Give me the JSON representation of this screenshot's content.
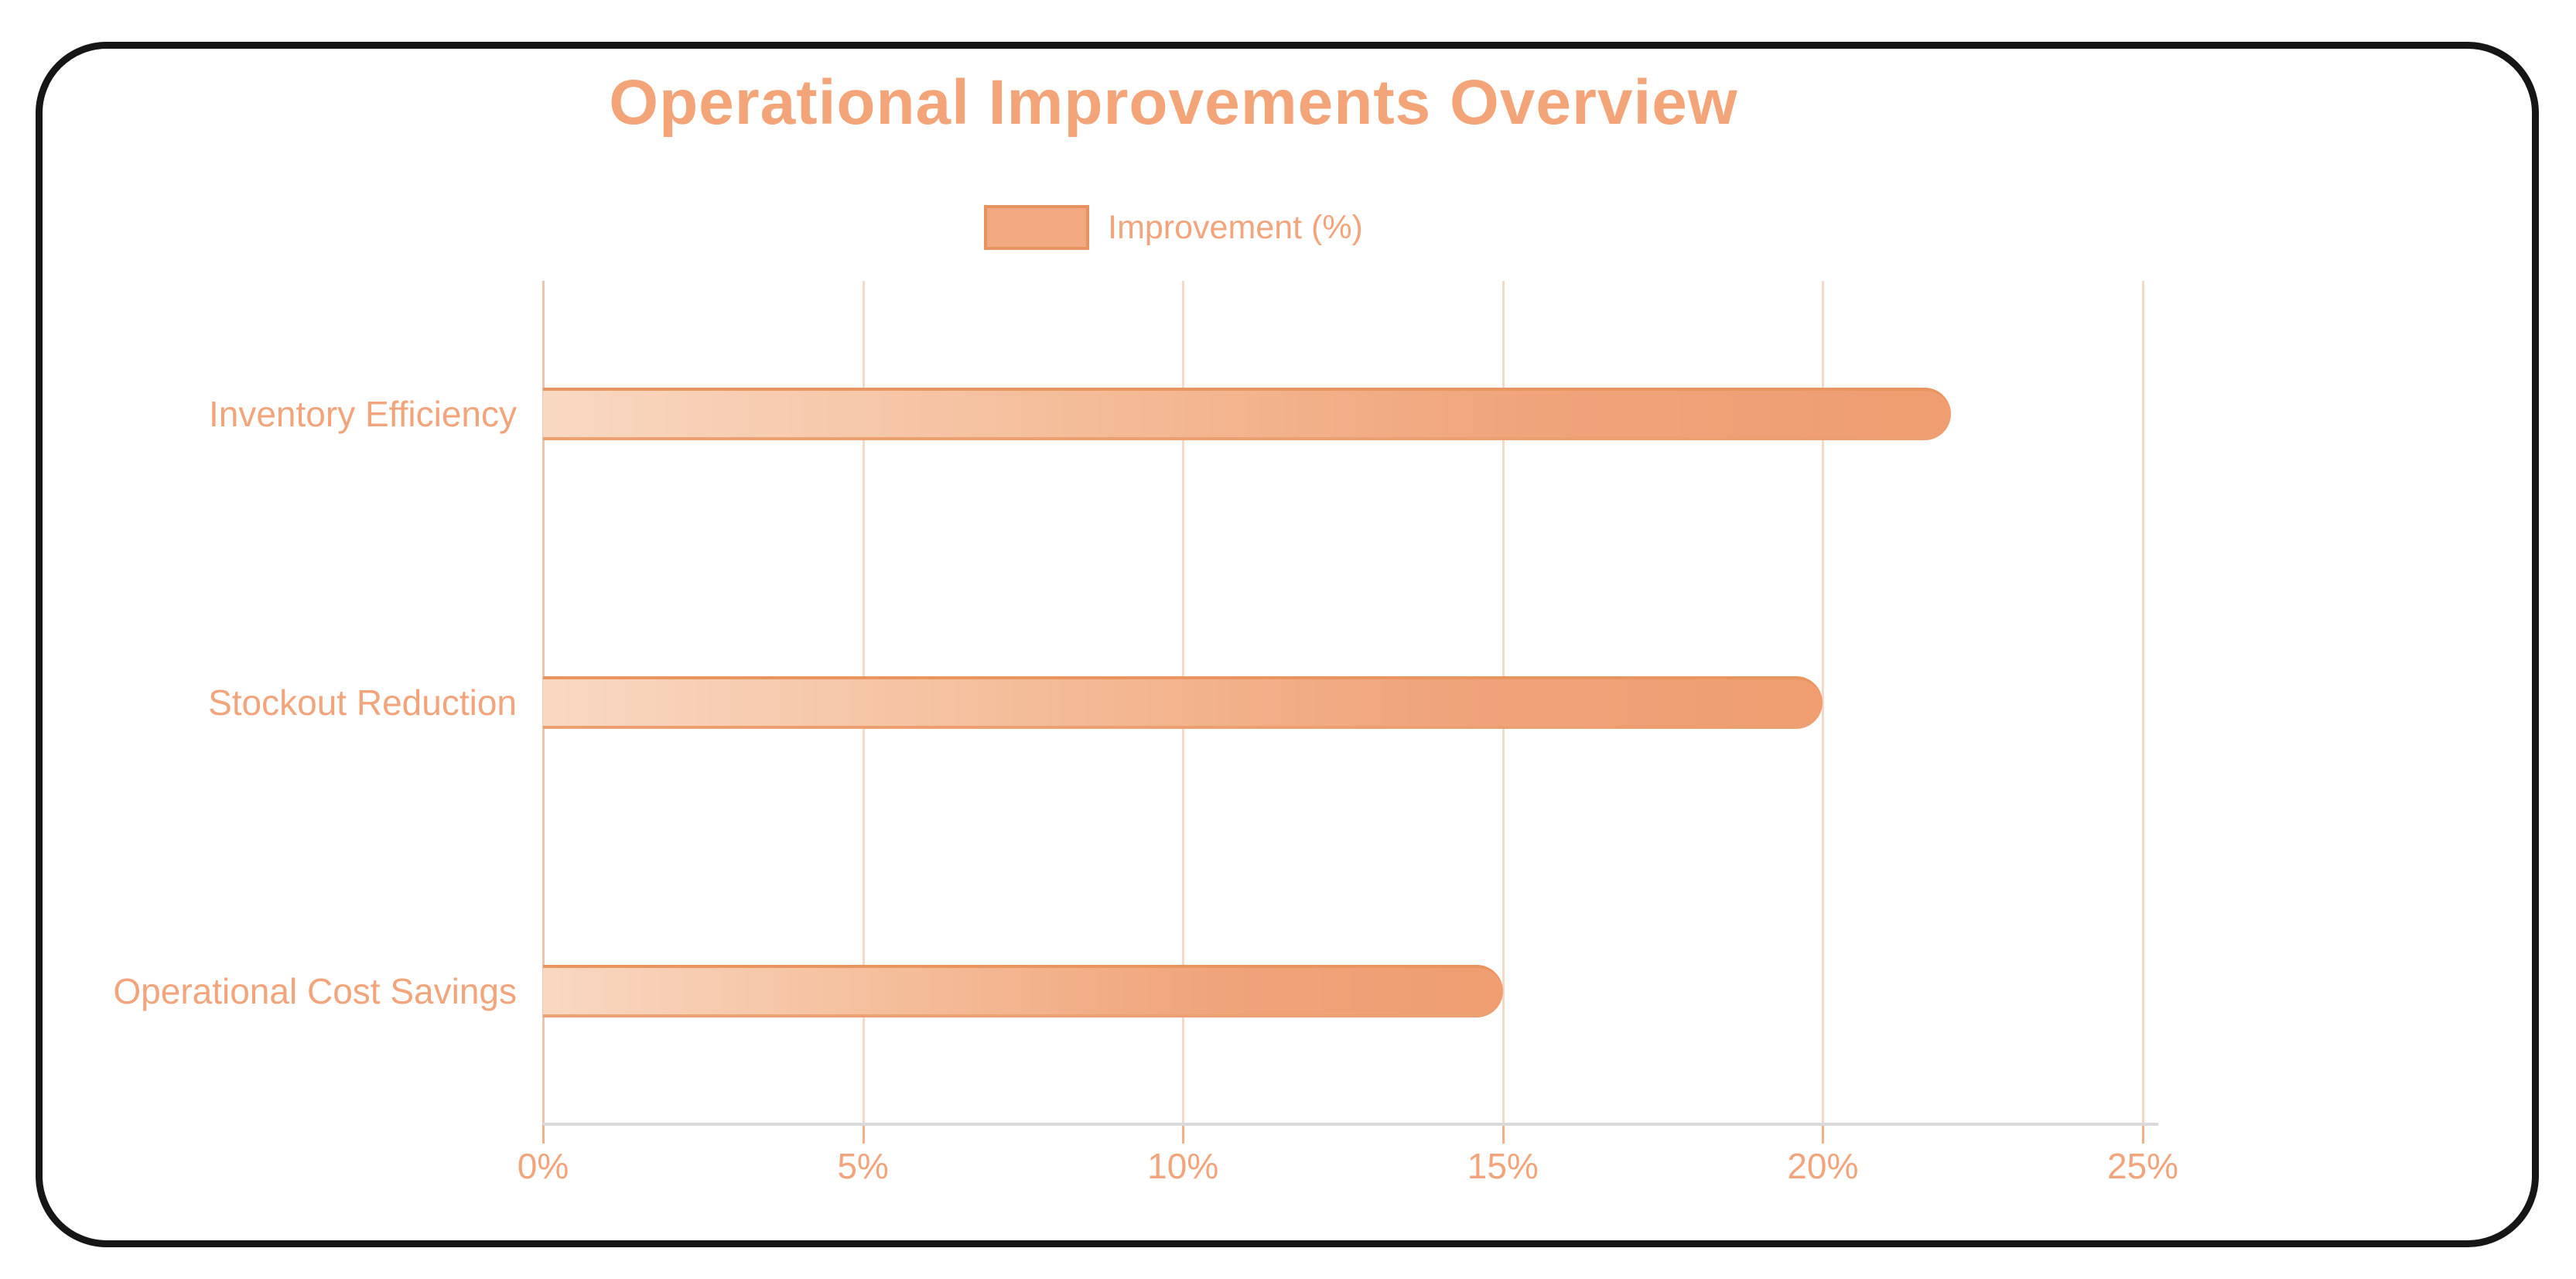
{
  "title": "Operational Improvements Overview",
  "legend": {
    "label": "Improvement (%)",
    "swatch_color": "#F2A981"
  },
  "chart_data": {
    "type": "bar",
    "orientation": "horizontal",
    "title": "Operational Improvements Overview",
    "series_name": "Improvement (%)",
    "categories": [
      "Inventory Efficiency",
      "Stockout Reduction",
      "Operational Cost Savings"
    ],
    "values": [
      22,
      20,
      15
    ],
    "xlabel": "",
    "ylabel": "",
    "xlim": [
      0,
      25
    ],
    "x_ticks": [
      {
        "value": 0,
        "label": "0%"
      },
      {
        "value": 5,
        "label": "5%"
      },
      {
        "value": 10,
        "label": "10%"
      },
      {
        "value": 15,
        "label": "15%"
      },
      {
        "value": 20,
        "label": "20%"
      },
      {
        "value": 25,
        "label": "25%"
      }
    ],
    "grid": true,
    "legend_position": "top",
    "colors": {
      "bar_solid": "#F0A075",
      "bar_light": "#F9D8C2",
      "bar_border": "#E8955F",
      "text": "#F2A57C",
      "title": "#F3A478",
      "gridline": "#F6D8C7",
      "axis_line": "#DADADA"
    }
  }
}
